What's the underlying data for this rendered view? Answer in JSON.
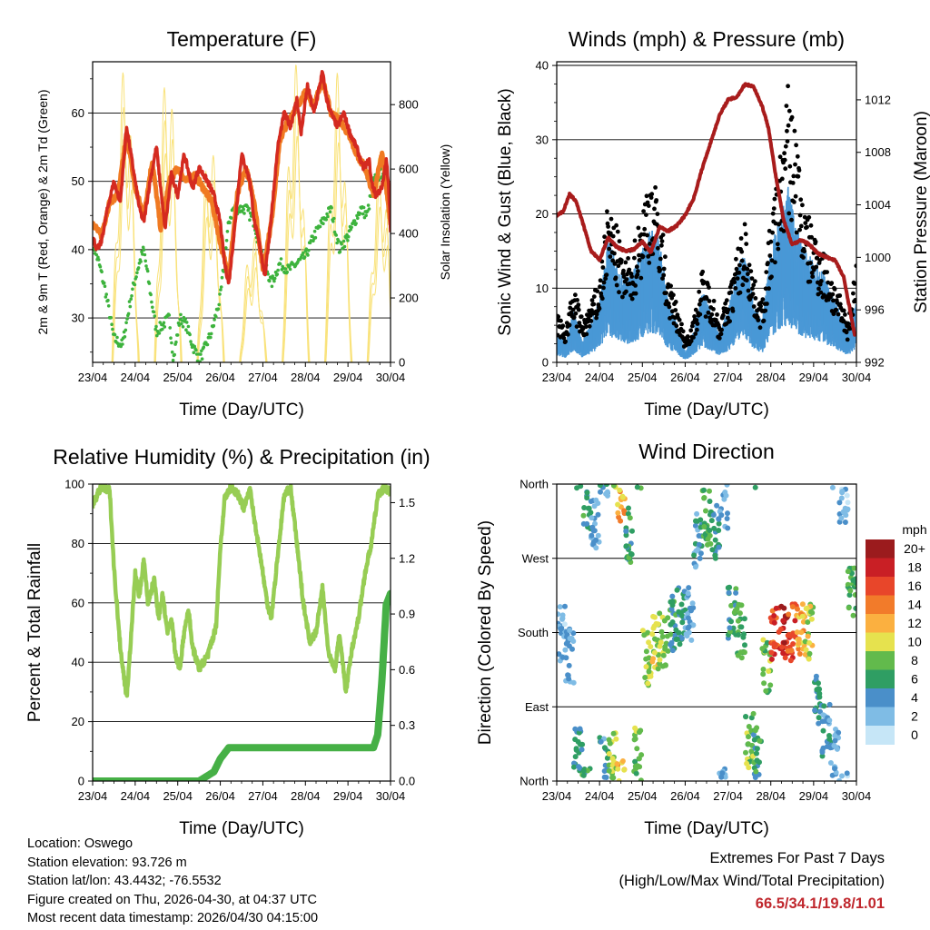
{
  "colors": {
    "temp_red": "#d42a20",
    "temp_orange": "#f07a22",
    "dewpoint_green": "#3db33d",
    "solar_yellow": "#f9e27a",
    "wind_blue": "#4a98d6",
    "gust_black": "#000000",
    "pressure_maroon": "#a81c1c",
    "rh_green": "#97cd54",
    "precip_green": "#46b046",
    "extremes_text": "#c0272d"
  },
  "speed_palette": [
    "#c6e6f7",
    "#7fbce5",
    "#4a8fc9",
    "#2f9e63",
    "#62ba4c",
    "#e6e24e",
    "#fbb040",
    "#f27b2a",
    "#e8462a",
    "#c91f25",
    "#9b1b1d"
  ],
  "chart_data": [
    {
      "id": "temperature",
      "type": "line",
      "title": "Temperature (F)",
      "xlabel": "Time (Day/UTC)",
      "ylabel": "2m & 9m T (Red, Orange) & 2m Td (Green)",
      "ylabel_right": "Solar Insolation (Yellow)",
      "x_ticks": [
        "23/04",
        "24/04",
        "25/04",
        "26/04",
        "27/04",
        "28/04",
        "29/04",
        "30/04"
      ],
      "xlim": [
        0,
        7
      ],
      "ylim": [
        23.5,
        67.5
      ],
      "y_ticks": [
        30,
        40,
        50,
        60
      ],
      "ylim_right": [
        0,
        933
      ],
      "y_ticks_right": [
        0,
        200,
        400,
        600,
        800
      ],
      "series": [
        {
          "name": "2m T",
          "x": [
            0,
            0.1,
            0.2,
            0.35,
            0.5,
            0.65,
            0.8,
            0.95,
            1.1,
            1.2,
            1.35,
            1.5,
            1.7,
            1.85,
            2.0,
            2.15,
            2.35,
            2.5,
            2.7,
            2.85,
            3.0,
            3.1,
            3.2,
            3.35,
            3.5,
            3.6,
            3.7,
            3.8,
            3.95,
            4.05,
            4.2,
            4.35,
            4.5,
            4.65,
            4.8,
            4.9,
            5.05,
            5.2,
            5.4,
            5.5,
            5.6,
            5.75,
            5.9,
            6.05,
            6.2,
            6.35,
            6.5,
            6.55,
            6.65,
            6.8,
            6.9,
            6.95,
            7.0
          ],
          "values": [
            42,
            40,
            41,
            46,
            50,
            47,
            58,
            52,
            46,
            44,
            50,
            55,
            43,
            51,
            48,
            54,
            49,
            52,
            50,
            48,
            44,
            38,
            35,
            44,
            54,
            52,
            50,
            44,
            40,
            36,
            45,
            55,
            60,
            58,
            62,
            57,
            64,
            60,
            66,
            62,
            60,
            58,
            60,
            57,
            55,
            52,
            53,
            50,
            48,
            49,
            53,
            50,
            43
          ]
        },
        {
          "name": "9m T",
          "x": [
            0,
            0.2,
            0.4,
            0.6,
            0.8,
            1.0,
            1.2,
            1.4,
            1.6,
            1.8,
            2.0,
            2.2,
            2.4,
            2.6,
            2.8,
            3.0,
            3.2,
            3.4,
            3.6,
            3.8,
            4.0,
            4.2,
            4.4,
            4.6,
            4.8,
            5.0,
            5.2,
            5.4,
            5.6,
            5.8,
            6.0,
            6.2,
            6.4,
            6.6,
            6.8,
            7.0
          ],
          "values": [
            44,
            42,
            47,
            48,
            57,
            49,
            45,
            53,
            43,
            50,
            52,
            50,
            51,
            49,
            47,
            41,
            36,
            48,
            52,
            47,
            37,
            44,
            56,
            59,
            61,
            63,
            61,
            65,
            60,
            59,
            57,
            54,
            52,
            48,
            54,
            44
          ]
        },
        {
          "name": "2m Td",
          "x": [
            0,
            0.15,
            0.3,
            0.5,
            0.7,
            0.9,
            1.05,
            1.2,
            1.35,
            1.5,
            1.65,
            1.8,
            1.9,
            2.05,
            2.2,
            2.35,
            2.5,
            2.6,
            2.8,
            3.0,
            3.2,
            3.3,
            3.4,
            3.6,
            3.8,
            3.9,
            4.05,
            4.2,
            4.4,
            4.6,
            4.8,
            5.0,
            5.2,
            5.4,
            5.6,
            5.8,
            6.0,
            6.15,
            6.3,
            6.45,
            6.6,
            6.75,
            6.9,
            7.0
          ],
          "values": [
            41,
            38,
            34,
            27,
            26,
            33,
            37,
            40,
            34,
            28,
            29,
            30,
            24,
            30,
            29,
            26,
            24,
            25,
            28,
            33,
            44,
            46,
            46,
            46,
            44,
            41,
            38,
            35,
            38,
            37,
            38,
            39,
            42,
            44,
            46,
            40,
            42,
            44,
            46,
            45,
            50,
            51,
            52,
            43
          ]
        }
      ],
      "solar": {
        "name": "Solar Insolation",
        "days": [
          0,
          1,
          2,
          3,
          4,
          5,
          6
        ],
        "peaks": [
          930,
          930,
          700,
          400,
          930,
          900,
          650
        ]
      }
    },
    {
      "id": "winds",
      "type": "scatter",
      "title": "Winds (mph) & Pressure (mb)",
      "xlabel": "Time (Day/UTC)",
      "ylabel": "Sonic Wind & Gust (Blue, Black)",
      "ylabel_right": "Station Pressure (Maroon)",
      "x_ticks": [
        "23/04",
        "24/04",
        "25/04",
        "26/04",
        "27/04",
        "28/04",
        "29/04",
        "30/04"
      ],
      "xlim": [
        0,
        7
      ],
      "ylim": [
        0,
        40.5
      ],
      "y_ticks": [
        0,
        10,
        20,
        30,
        40
      ],
      "ylim_right": [
        992,
        1014.9
      ],
      "y_ticks_right": [
        992,
        996,
        1000,
        1004,
        1008,
        1012
      ],
      "series": [
        {
          "name": "Wind (blue)",
          "x": [
            0,
            0.2,
            0.4,
            0.6,
            0.8,
            1.0,
            1.2,
            1.4,
            1.6,
            1.8,
            2.0,
            2.2,
            2.4,
            2.6,
            2.8,
            3.0,
            3.2,
            3.4,
            3.6,
            3.8,
            4.0,
            4.2,
            4.4,
            4.6,
            4.8,
            5.0,
            5.2,
            5.4,
            5.6,
            5.8,
            6.0,
            6.2,
            6.4,
            6.6,
            6.8,
            7.0
          ],
          "values": [
            3,
            2,
            5,
            2,
            4,
            6,
            12,
            10,
            8,
            9,
            11,
            13,
            12,
            6,
            4,
            1,
            3,
            7,
            5,
            3,
            5,
            9,
            11,
            6,
            4,
            11,
            14,
            17,
            13,
            11,
            10,
            9,
            7,
            5,
            3,
            6
          ]
        },
        {
          "name": "Gust (black)",
          "x": [
            0,
            0.2,
            0.4,
            0.6,
            0.8,
            1.0,
            1.2,
            1.4,
            1.6,
            1.8,
            2.0,
            2.2,
            2.4,
            2.6,
            2.8,
            3.0,
            3.2,
            3.4,
            3.6,
            3.8,
            4.0,
            4.2,
            4.4,
            4.6,
            4.8,
            5.0,
            5.2,
            5.4,
            5.6,
            5.8,
            6.0,
            6.2,
            6.4,
            6.6,
            6.8,
            7.0
          ],
          "values": [
            6,
            4,
            9,
            5,
            7,
            10,
            19,
            16,
            12,
            14,
            19,
            23,
            19,
            10,
            7,
            3,
            5,
            11,
            9,
            5,
            8,
            13,
            17,
            10,
            7,
            17,
            24,
            33,
            28,
            18,
            16,
            14,
            11,
            8,
            5,
            12
          ]
        },
        {
          "name": "Station Pressure",
          "x": [
            0,
            0.15,
            0.3,
            0.45,
            0.6,
            0.8,
            1.0,
            1.2,
            1.4,
            1.6,
            1.8,
            2.0,
            2.2,
            2.4,
            2.6,
            2.8,
            3.0,
            3.2,
            3.4,
            3.6,
            3.8,
            4.0,
            4.2,
            4.4,
            4.6,
            4.8,
            4.95,
            5.1,
            5.3,
            5.5,
            5.7,
            5.9,
            6.1,
            6.3,
            6.5,
            6.7,
            6.85,
            6.95,
            7.0
          ],
          "values": [
            1003.2,
            1003.5,
            1004.8,
            1004.3,
            1002.7,
            1000.5,
            999.8,
            1001.5,
            1000.8,
            1000.5,
            1000.6,
            1001.2,
            1000.4,
            1002.3,
            1002.0,
            1002.4,
            1003.2,
            1004.5,
            1006.8,
            1008.8,
            1010.8,
            1012.0,
            1012.2,
            1013.2,
            1013.0,
            1011.5,
            1009.8,
            1006.5,
            1002.8,
            1001.0,
            1001.3,
            1001.0,
            1000.3,
            1000.0,
            999.8,
            998.5,
            996.0,
            994.2,
            994.0
          ]
        }
      ]
    },
    {
      "id": "humidity",
      "type": "line",
      "title": "Relative Humidity (%) & Precipitation (in)",
      "xlabel": "Time (Day/UTC)",
      "ylabel": "Percent & Total Rainfall",
      "x_ticks": [
        "23/04",
        "24/04",
        "25/04",
        "26/04",
        "27/04",
        "28/04",
        "29/04",
        "30/04"
      ],
      "xlim": [
        0,
        7
      ],
      "ylim": [
        0,
        100
      ],
      "y_ticks": [
        0,
        20,
        40,
        60,
        80,
        100
      ],
      "ylim_right": [
        0,
        1.6
      ],
      "y_ticks_right": [
        "0.0",
        "0.3",
        "0.6",
        "0.9",
        "1.2",
        "1.5"
      ],
      "series": [
        {
          "name": "Relative Humidity",
          "x": [
            0,
            0.1,
            0.2,
            0.4,
            0.5,
            0.65,
            0.8,
            0.9,
            1.0,
            1.1,
            1.2,
            1.3,
            1.45,
            1.55,
            1.65,
            1.75,
            1.85,
            1.95,
            2.05,
            2.15,
            2.25,
            2.35,
            2.5,
            2.7,
            2.9,
            3.0,
            3.1,
            3.25,
            3.4,
            3.55,
            3.7,
            3.8,
            3.95,
            4.1,
            4.2,
            4.35,
            4.5,
            4.65,
            4.8,
            4.95,
            5.1,
            5.25,
            5.4,
            5.55,
            5.7,
            5.8,
            5.95,
            6.1,
            6.25,
            6.4,
            6.55,
            6.7,
            6.85,
            7.0
          ],
          "values": [
            93,
            96,
            99,
            98,
            72,
            45,
            28,
            48,
            70,
            62,
            75,
            60,
            68,
            55,
            63,
            50,
            55,
            42,
            38,
            50,
            58,
            45,
            38,
            42,
            52,
            78,
            95,
            99,
            97,
            92,
            98,
            88,
            75,
            60,
            55,
            76,
            96,
            99,
            80,
            60,
            47,
            50,
            65,
            42,
            38,
            50,
            30,
            45,
            55,
            70,
            80,
            96,
            99,
            97
          ]
        },
        {
          "name": "Total Precipitation",
          "x": [
            0,
            1.0,
            2.0,
            2.5,
            2.85,
            3.0,
            3.2,
            4.0,
            5.0,
            6.0,
            6.6,
            6.7,
            6.8,
            6.85,
            6.9,
            7.0
          ],
          "values": [
            0.0,
            0.0,
            0.0,
            0.0,
            0.05,
            0.12,
            0.18,
            0.18,
            0.18,
            0.18,
            0.18,
            0.25,
            0.55,
            0.75,
            0.95,
            1.01
          ]
        }
      ]
    },
    {
      "id": "wind_direction",
      "type": "scatter",
      "title": "Wind Direction",
      "xlabel": "Time (Day/UTC)",
      "ylabel": "Direction (Colored By Speed)",
      "x_ticks": [
        "23/04",
        "24/04",
        "25/04",
        "26/04",
        "27/04",
        "28/04",
        "29/04",
        "30/04"
      ],
      "xlim": [
        0,
        7
      ],
      "y_ticks": [
        "North",
        "East",
        "South",
        "West",
        "North"
      ],
      "ylim": [
        0,
        360
      ],
      "legend": {
        "title": "mph",
        "labels": [
          "20+",
          "18",
          "16",
          "14",
          "12",
          "10",
          "8",
          "6",
          "4",
          "2",
          "0"
        ]
      },
      "series": [
        {
          "name": "Direction",
          "x": [
            0.1,
            0.3,
            0.5,
            0.7,
            0.9,
            1.1,
            1.3,
            1.5,
            1.7,
            1.9,
            2.1,
            2.3,
            2.5,
            2.7,
            2.9,
            3.1,
            3.3,
            3.5,
            3.7,
            3.9,
            4.1,
            4.3,
            4.5,
            4.7,
            4.9,
            5.1,
            5.3,
            5.5,
            5.7,
            5.9,
            6.1,
            6.3,
            6.5,
            6.7,
            6.9
          ],
          "values": [
            180,
            150,
            30,
            340,
            310,
            20,
            30,
            350,
            300,
            30,
            150,
            170,
            170,
            190,
            200,
            200,
            290,
            320,
            300,
            340,
            200,
            180,
            50,
            30,
            140,
            180,
            180,
            180,
            180,
            180,
            100,
            60,
            30,
            340,
            230
          ],
          "speeds": [
            2,
            3,
            5,
            6,
            3,
            4,
            9,
            12,
            6,
            8,
            9,
            10,
            9,
            6,
            5,
            3,
            4,
            7,
            5,
            3,
            6,
            7,
            8,
            6,
            8,
            16,
            18,
            16,
            12,
            10,
            5,
            4,
            3,
            2,
            7
          ]
        }
      ]
    }
  ],
  "info": {
    "location": "Location: Oswego",
    "elevation": "Station elevation: 93.726 m",
    "latlon": "Station lat/lon: 43.4432; -76.5532",
    "created": "Figure created on Thu, 2026-04-30, at 04:37 UTC",
    "recent": "Most recent data timestamp: 2026/04/30 04:15:00"
  },
  "extremes": {
    "line1": "Extremes For Past 7 Days",
    "line2": "(High/Low/Max Wind/Total Precipitation)",
    "values": "66.5/34.1/19.8/1.01"
  }
}
